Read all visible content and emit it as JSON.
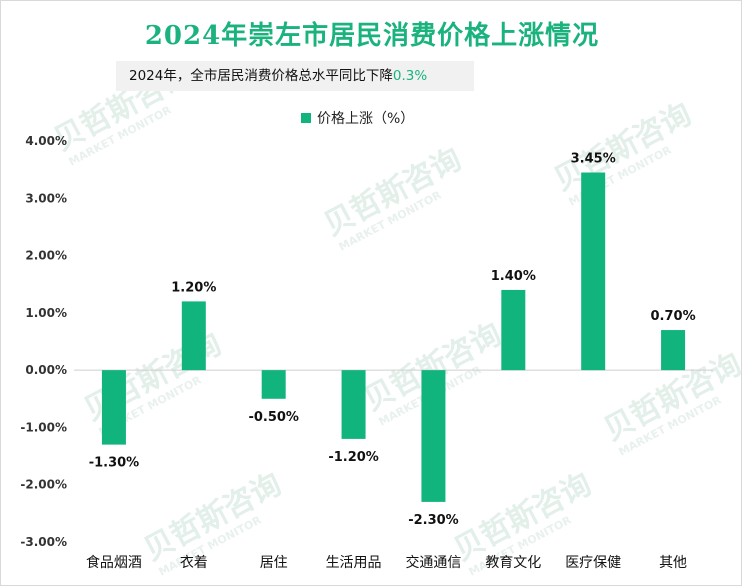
{
  "page": {
    "title": "2024年崇左市居民消费价格上涨情况",
    "subtitle_prefix": "2024年，全市居民消费价格总水平同比下降",
    "subtitle_value": "0.3%"
  },
  "watermark": {
    "cn": "贝哲斯咨询",
    "en": "MARKET MONITOR"
  },
  "colors": {
    "accent": "#1bb37d",
    "bar": "#12b47e"
  },
  "chart_data": {
    "type": "bar",
    "title": "2024年崇左市居民消费价格上涨情况",
    "categories": [
      "食品烟酒",
      "衣着",
      "居住",
      "生活用品",
      "交通通信",
      "教育文化",
      "医疗保健",
      "其他"
    ],
    "series": [
      {
        "name": "价格上涨（%）",
        "values": [
          -1.3,
          1.2,
          -0.5,
          -1.2,
          -2.3,
          1.4,
          3.45,
          0.7
        ]
      }
    ],
    "data_labels": [
      "-1.30%",
      "1.20%",
      "-0.50%",
      "-1.20%",
      "-2.30%",
      "1.40%",
      "3.45%",
      "0.70%"
    ],
    "yticks": [
      4,
      3,
      2,
      1,
      0,
      -1,
      -2,
      -3
    ],
    "ytick_labels": [
      "4.00%",
      "3.00%",
      "2.00%",
      "1.00%",
      "0.00%",
      "-1.00%",
      "-2.00%",
      "-3.00%"
    ],
    "ylim": [
      -3,
      4
    ],
    "xlabel": "",
    "ylabel": "",
    "legend": "top-center",
    "grid": false
  }
}
